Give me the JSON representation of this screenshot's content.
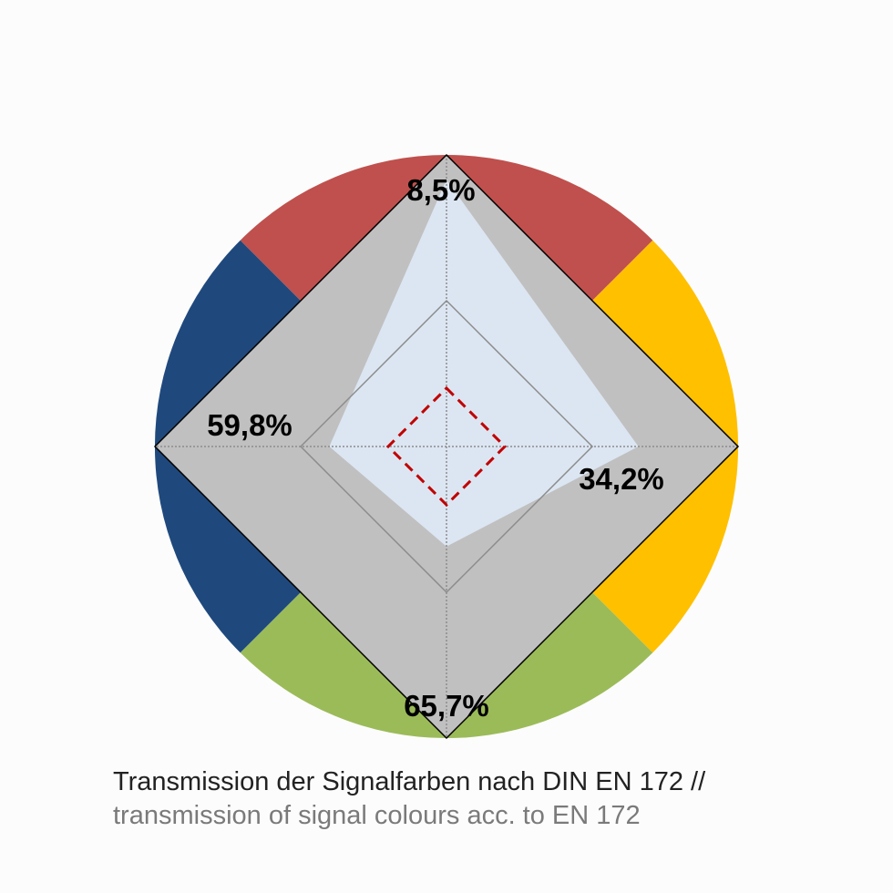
{
  "chart_data": {
    "type": "radar",
    "categories": [
      "red",
      "yellow",
      "green",
      "blue"
    ],
    "value_labels": [
      "8,5%",
      "34,2%",
      "65,7%",
      "59,8%"
    ],
    "values": [
      8.5,
      34.2,
      65.7,
      59.8
    ],
    "series": [
      {
        "color": "#dce6f2",
        "values": [
          8.5,
          34.2,
          65.7,
          59.8
        ]
      }
    ],
    "reference_dashed": {
      "color": "#c00000",
      "values": [
        80,
        80,
        80,
        80
      ]
    },
    "rlim": [
      0,
      100
    ],
    "grid_rings": [
      50,
      100
    ],
    "colors": {
      "red": "#c0504d",
      "yellow": "#ffc000",
      "green": "#9bbb59",
      "blue": "#1f497d",
      "grey_fill": "#c0c0c0",
      "data_fill": "#dce6f2",
      "reference": "#c00000"
    }
  },
  "caption": {
    "line1": "Transmission der Signalfarben nach DIN EN 172 //",
    "line2": "transmission of signal colours acc. to EN 172"
  }
}
